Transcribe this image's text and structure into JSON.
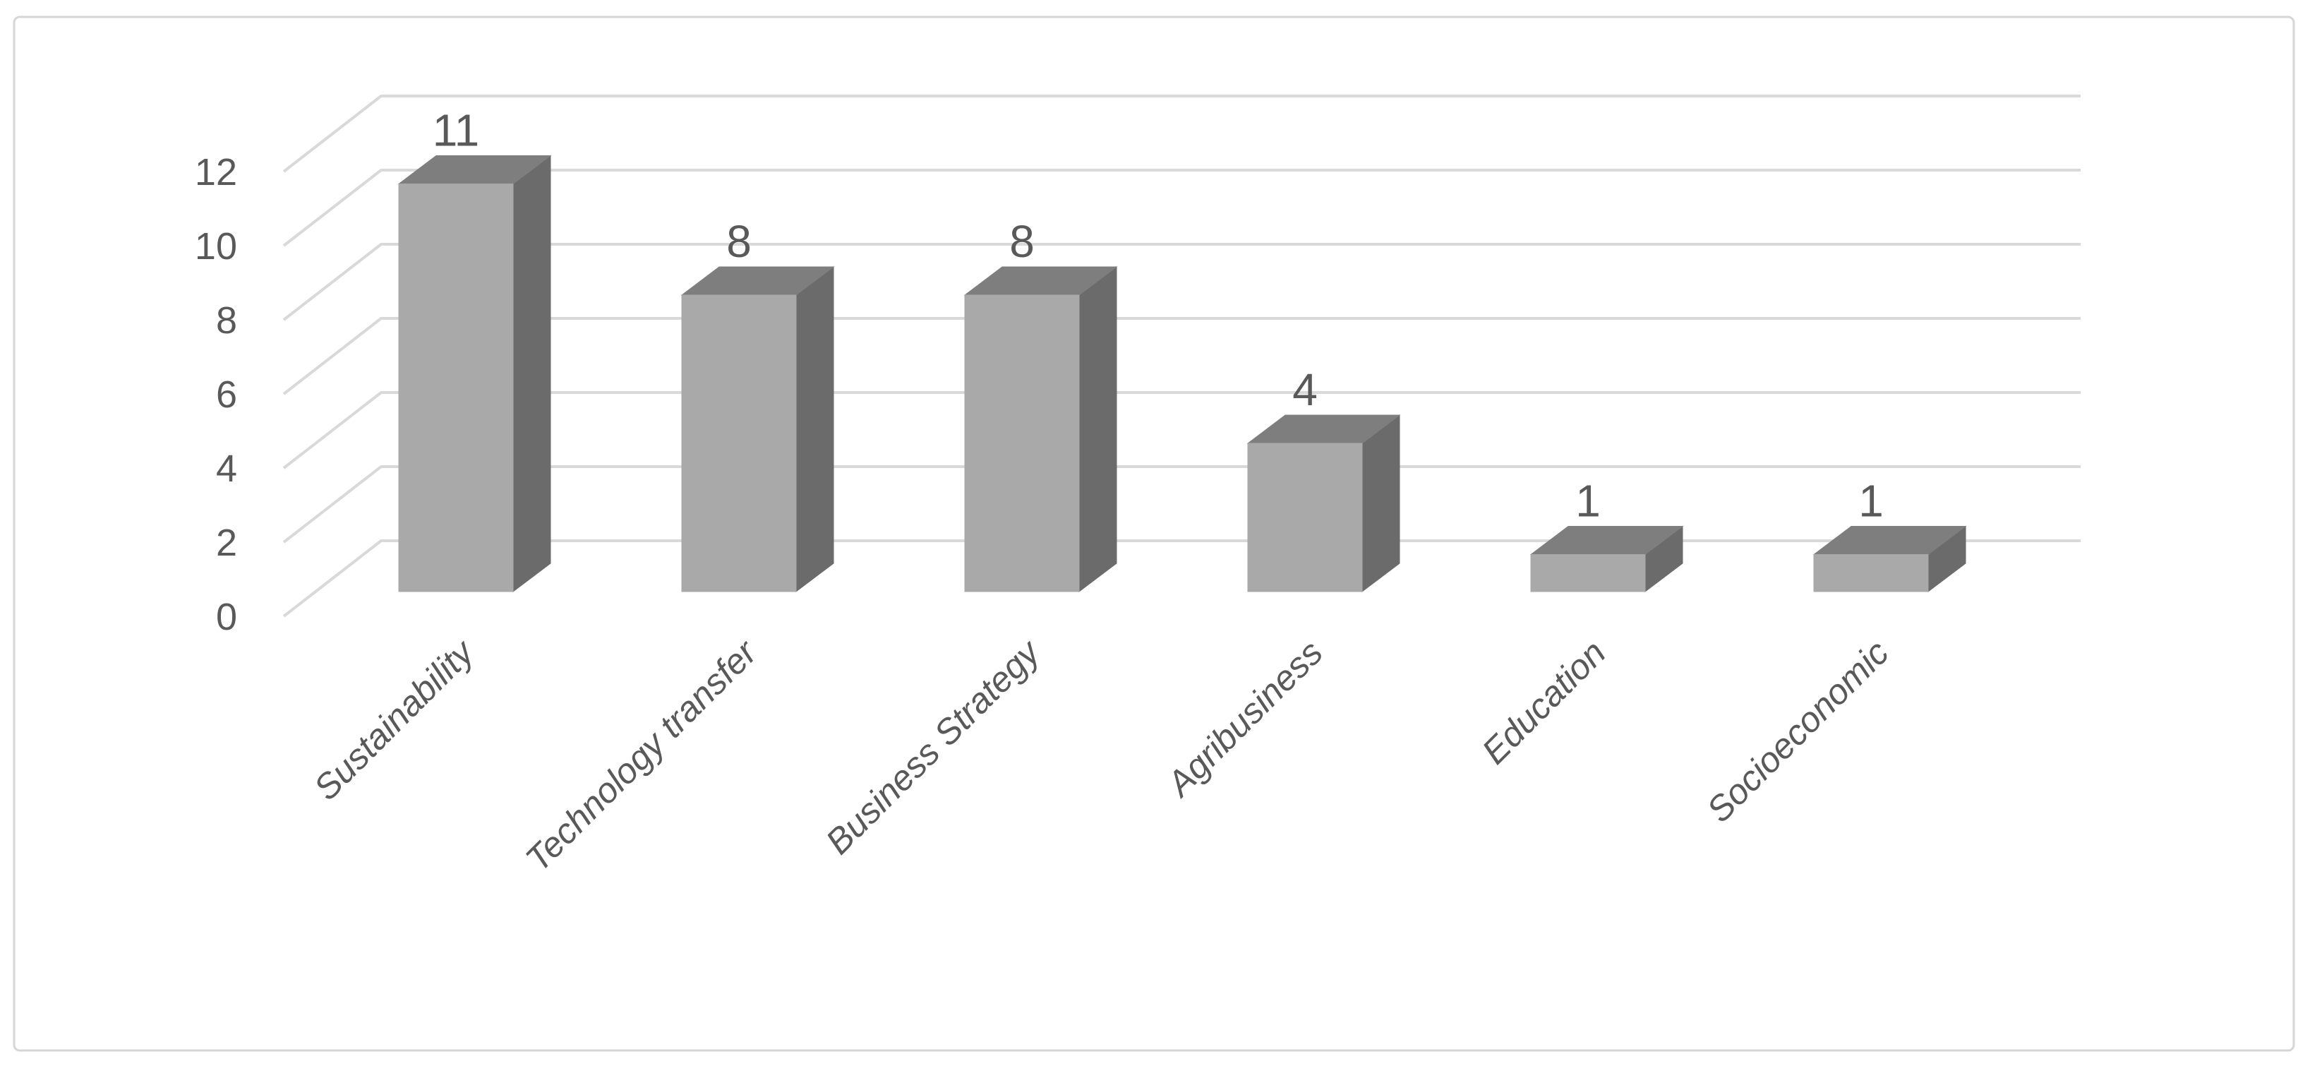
{
  "chart_data": {
    "type": "bar",
    "variant": "3d-column",
    "title": "",
    "xlabel": "",
    "ylabel": "",
    "categories": [
      "Sustainability",
      "Technology transfer",
      "Business Strategy",
      "Agribusiness",
      "Education",
      "Socioeconomic"
    ],
    "values": [
      11,
      8,
      8,
      4,
      1,
      1
    ],
    "data_labels": [
      "11",
      "8",
      "8",
      "4",
      "1",
      "1"
    ],
    "y_ticks": [
      0,
      2,
      4,
      6,
      8,
      10,
      12
    ],
    "ylim": [
      0,
      12
    ],
    "grid": true,
    "legend": false,
    "series_name": "",
    "colors": {
      "bar_front": "#a9a9a9",
      "bar_top": "#7e7e7e",
      "bar_side": "#6b6b6b",
      "gridline": "#d9d9d9",
      "text": "#595959",
      "border": "#d6d6d6",
      "background": "#ffffff"
    }
  }
}
